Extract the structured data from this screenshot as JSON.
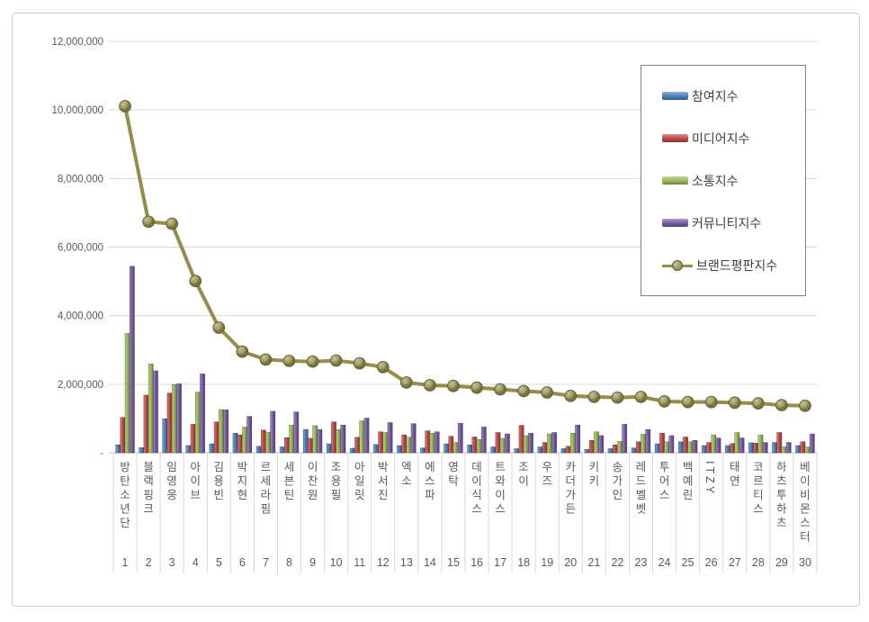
{
  "chart_data": {
    "type": "bar",
    "subtype": "clustered-3d-with-line",
    "title": "",
    "xlabel": "",
    "ylabel": "",
    "categories": [
      "방탄소년단",
      "블랙핑크",
      "임영웅",
      "아이브",
      "김용빈",
      "박지현",
      "르세라핌",
      "세븐틴",
      "이찬원",
      "조용필",
      "아일릿",
      "박서진",
      "엑소",
      "에스파",
      "영탁",
      "데이식스",
      "트와이스",
      "조이",
      "우즈",
      "카더가든",
      "키키",
      "송가인",
      "레드벨벳",
      "투어스",
      "백예린",
      "ITZY",
      "태연",
      "코르티스",
      "하츠투하츠",
      "베이비몬스터"
    ],
    "ranks": [
      "1",
      "2",
      "3",
      "4",
      "5",
      "6",
      "7",
      "8",
      "9",
      "10",
      "11",
      "12",
      "13",
      "14",
      "15",
      "16",
      "17",
      "18",
      "19",
      "20",
      "21",
      "22",
      "23",
      "24",
      "25",
      "26",
      "27",
      "28",
      "29",
      "30"
    ],
    "series": [
      {
        "name": "참여지수",
        "type": "bar",
        "color": "#4a7ebd",
        "values": [
          230000,
          150000,
          990000,
          210000,
          260000,
          570000,
          190000,
          170000,
          680000,
          260000,
          130000,
          240000,
          210000,
          140000,
          260000,
          230000,
          170000,
          120000,
          170000,
          120000,
          100000,
          120000,
          140000,
          260000,
          320000,
          210000,
          210000,
          290000,
          300000,
          210000
        ]
      },
      {
        "name": "미디어지수",
        "type": "bar",
        "color": "#be4b48",
        "values": [
          1030000,
          1680000,
          1740000,
          830000,
          900000,
          520000,
          660000,
          440000,
          420000,
          900000,
          450000,
          610000,
          520000,
          640000,
          480000,
          460000,
          590000,
          800000,
          300000,
          190000,
          360000,
          230000,
          320000,
          570000,
          460000,
          300000,
          270000,
          280000,
          590000,
          320000
        ]
      },
      {
        "name": "소통지수",
        "type": "bar",
        "color": "#9bba59",
        "values": [
          3480000,
          2590000,
          1990000,
          1770000,
          1260000,
          750000,
          600000,
          810000,
          790000,
          680000,
          930000,
          590000,
          450000,
          570000,
          300000,
          390000,
          420000,
          500000,
          550000,
          570000,
          610000,
          330000,
          540000,
          320000,
          320000,
          520000,
          590000,
          520000,
          170000,
          170000
        ]
      },
      {
        "name": "커뮤니티지수",
        "type": "bar",
        "color": "#7a5da4",
        "values": [
          5440000,
          2390000,
          2010000,
          2300000,
          1250000,
          1060000,
          1210000,
          1190000,
          680000,
          810000,
          1010000,
          880000,
          850000,
          610000,
          860000,
          750000,
          550000,
          570000,
          590000,
          810000,
          500000,
          830000,
          680000,
          500000,
          360000,
          430000,
          430000,
          300000,
          300000,
          550000
        ]
      },
      {
        "name": "브랜드평판지수",
        "type": "line",
        "color": "#948e4c",
        "values": [
          10110000,
          6740000,
          6680000,
          5010000,
          3650000,
          2950000,
          2720000,
          2680000,
          2660000,
          2690000,
          2610000,
          2500000,
          2050000,
          1970000,
          1950000,
          1900000,
          1850000,
          1800000,
          1760000,
          1660000,
          1630000,
          1610000,
          1630000,
          1500000,
          1480000,
          1480000,
          1460000,
          1440000,
          1390000,
          1370000
        ]
      }
    ],
    "yaxis": {
      "min": 0,
      "max": 12000000,
      "step": 2000000,
      "tick_labels": [
        "-",
        "2,000,000",
        "4,000,000",
        "6,000,000",
        "8,000,000",
        "10,000,000",
        "12,000,000"
      ]
    },
    "legend_position": "right-top",
    "grid": true
  },
  "colors": {
    "grid_line": "#d9d9d9",
    "axis_line": "#bfbfbf",
    "tick_text": "#595959",
    "legend_text": "#404040",
    "legend_border": "#7f7f7f",
    "frame_border": "#c9c9c9",
    "background": "#ffffff"
  }
}
